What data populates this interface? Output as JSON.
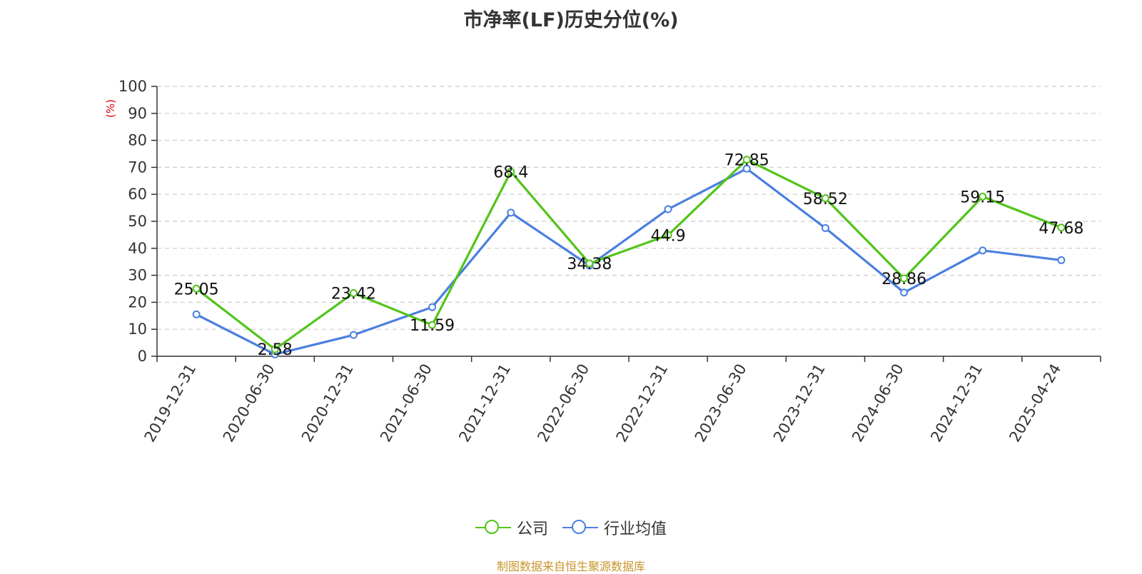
{
  "title": "市净率(LF)历史分位(%)",
  "source": "制图数据来自恒生聚源数据库",
  "colors": {
    "company": "#52c41a",
    "industry": "#4a7fe0",
    "ylabel": "#e00000"
  },
  "legend": [
    {
      "name": "公司",
      "color": "#52c41a"
    },
    {
      "name": "行业均值",
      "color": "#4a7fe0"
    }
  ],
  "chart_data": {
    "type": "line",
    "title": "市净率(LF)历史分位(%)",
    "ylabel": "(%)",
    "ylim": [
      0,
      100
    ],
    "yticks": [
      0,
      10,
      20,
      30,
      40,
      50,
      60,
      70,
      80,
      90,
      100
    ],
    "grid": true,
    "legend_position": "bottom",
    "x_tick_labels": [
      "2019-12-31",
      "2020-06-30",
      "2020-12-31",
      "2021-06-30",
      "2021-12-31",
      "2022-06-30",
      "2022-12-31",
      "2023-06-30",
      "2023-12-31",
      "2024-06-30",
      "2024-12-31",
      "2025-04-24"
    ],
    "series": [
      {
        "name": "公司",
        "values": [
          25.05,
          2.58,
          23.42,
          11.59,
          68.4,
          34.38,
          44.9,
          72.85,
          58.52,
          28.86,
          59.15,
          47.68
        ],
        "data_labels": [
          "25.05",
          "2.58",
          "23.42",
          "11.59",
          "68.4",
          "34.38",
          "44.9",
          "72.85",
          "58.52",
          "28.86",
          "59.15",
          "47.68"
        ]
      },
      {
        "name": "行业均值",
        "values": [
          15.5,
          0.7,
          7.9,
          18.2,
          53.2,
          33.6,
          54.5,
          69.5,
          47.5,
          23.6,
          39.2,
          35.6
        ]
      }
    ]
  }
}
